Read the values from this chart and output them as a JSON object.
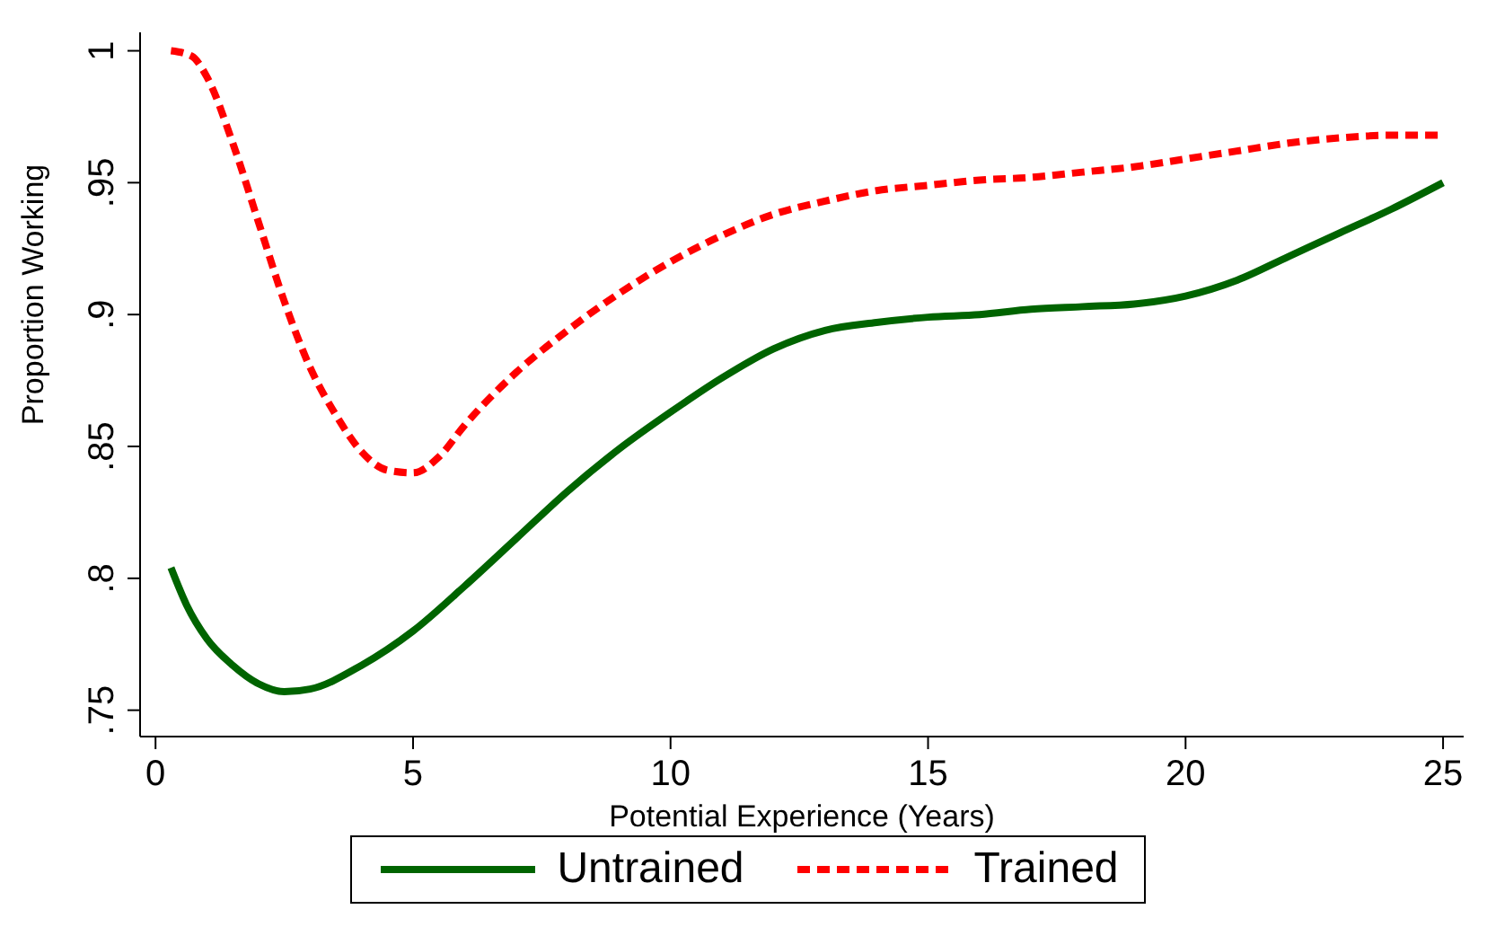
{
  "chart_data": {
    "type": "line",
    "xlabel": "Potential Experience (Years)",
    "ylabel": "Proportion Working",
    "xlim": [
      -0.3,
      25.4
    ],
    "xticks": [
      0,
      5,
      10,
      15,
      20,
      25
    ],
    "ylim": [
      0.74,
      1.007
    ],
    "yticks": [
      {
        "value": 0.75,
        "label": ".75"
      },
      {
        "value": 0.8,
        "label": ".8"
      },
      {
        "value": 0.85,
        "label": ".85"
      },
      {
        "value": 0.9,
        "label": ".9"
      },
      {
        "value": 0.95,
        "label": ".95"
      },
      {
        "value": 1,
        "label": "1"
      }
    ],
    "grid": false,
    "legend": "bottom",
    "marker": "none",
    "series": [
      {
        "name": "Untrained",
        "color": "#006400",
        "line_style": "solid",
        "x": [
          0.3,
          0.6,
          1,
          1.5,
          2,
          2.5,
          3,
          4,
          5,
          6,
          7,
          8,
          9,
          10,
          11,
          12,
          13,
          14,
          15,
          16,
          17,
          18,
          19,
          20,
          21,
          22,
          23,
          24,
          25
        ],
        "values": [
          0.804,
          0.79,
          0.777,
          0.767,
          0.76,
          0.757,
          0.758,
          0.767,
          0.78,
          0.797,
          0.815,
          0.833,
          0.849,
          0.863,
          0.876,
          0.887,
          0.894,
          0.897,
          0.899,
          0.9,
          0.902,
          0.903,
          0.904,
          0.907,
          0.913,
          0.922,
          0.931,
          0.94,
          0.95
        ]
      },
      {
        "name": "Trained",
        "color": "#ff0000",
        "line_style": "dashed",
        "x": [
          0.3,
          0.7,
          1,
          1.5,
          2,
          2.5,
          3,
          3.5,
          4,
          4.5,
          5,
          5.5,
          6,
          7,
          8,
          9,
          10,
          11,
          12,
          13,
          14,
          15,
          16,
          17,
          18,
          19,
          20,
          21,
          22,
          23,
          24,
          25
        ],
        "values": [
          1.0,
          0.998,
          0.99,
          0.965,
          0.935,
          0.905,
          0.88,
          0.862,
          0.848,
          0.841,
          0.84,
          0.846,
          0.858,
          0.878,
          0.894,
          0.908,
          0.92,
          0.93,
          0.938,
          0.943,
          0.947,
          0.949,
          0.951,
          0.952,
          0.954,
          0.956,
          0.959,
          0.962,
          0.965,
          0.967,
          0.968,
          0.968
        ]
      }
    ]
  }
}
